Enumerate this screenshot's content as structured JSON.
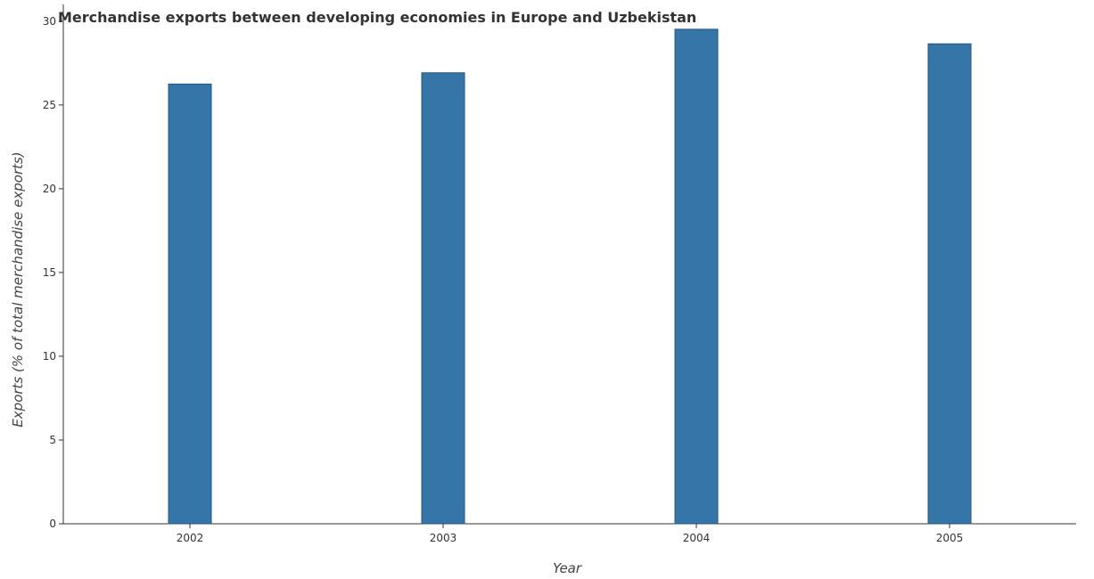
{
  "chart_data": {
    "type": "bar",
    "title": "Merchandise exports between developing economies in Europe and Uzbekistan",
    "xlabel": "Year",
    "ylabel": "Exports (% of total merchandise exports)",
    "categories": [
      "2002",
      "2003",
      "2004",
      "2005"
    ],
    "values": [
      26.25,
      26.92,
      29.52,
      28.65
    ],
    "ylim": [
      0,
      31
    ],
    "yticks": [
      0,
      5,
      10,
      15,
      20,
      25,
      30
    ],
    "grid": false,
    "legend": "none",
    "bar_color": "#3575a8"
  }
}
